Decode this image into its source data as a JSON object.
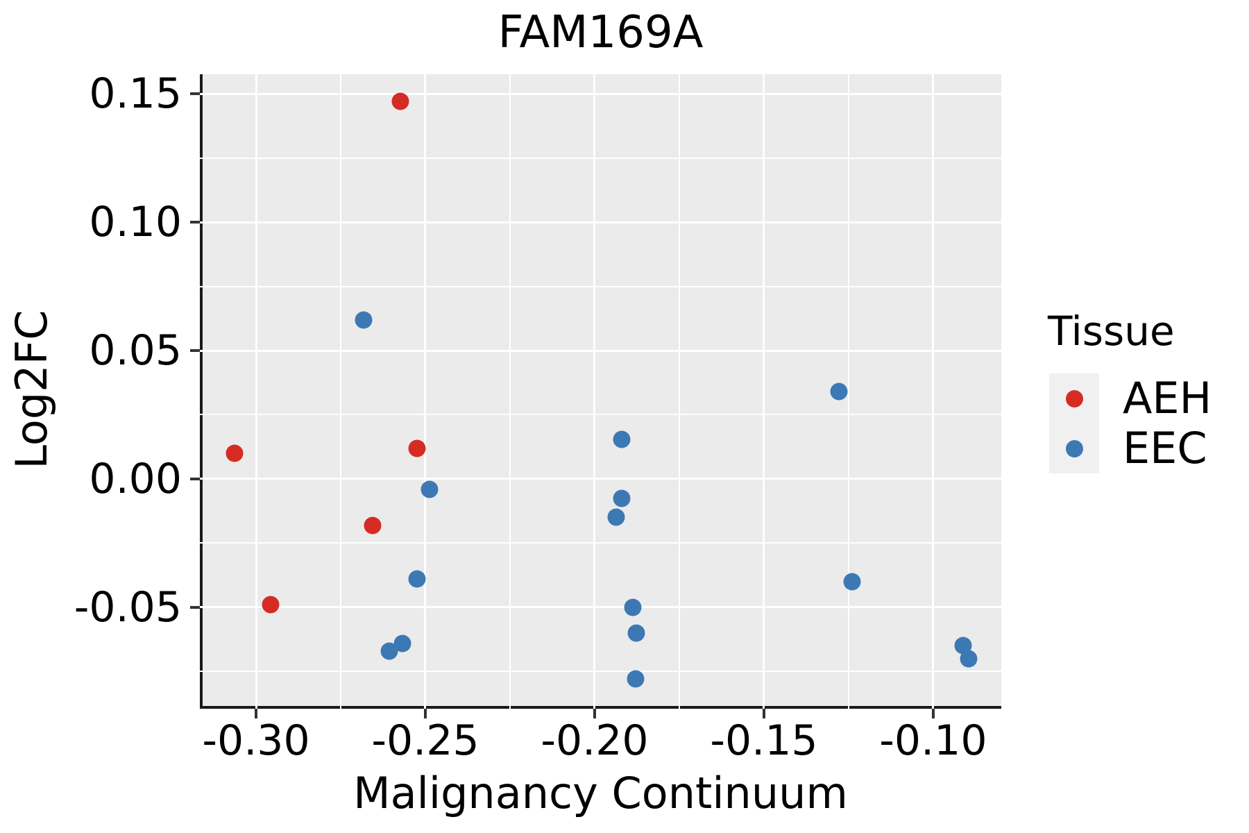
{
  "chart_data": {
    "type": "scatter",
    "title": "FAM169A",
    "xlabel": "Malignancy Continuum",
    "ylabel": "Log2FC",
    "legend_title": "Tissue",
    "legend_position": "right",
    "grid": "on",
    "colors": {
      "panel_background": "#ebebeb",
      "gridline": "#ffffff",
      "figure_background": "#ffffff",
      "legend_key_background": "#f0f0f0",
      "aeh": "#d62b23",
      "eec": "#3c79b4"
    },
    "xlim": [
      -0.3166,
      -0.0799
    ],
    "ylim": [
      -0.0895,
      0.1576
    ],
    "x_ticks": [
      {
        "value": -0.3,
        "label": "-0.30"
      },
      {
        "value": -0.25,
        "label": "-0.25"
      },
      {
        "value": -0.2,
        "label": "-0.20"
      },
      {
        "value": -0.15,
        "label": "-0.15"
      },
      {
        "value": -0.1,
        "label": "-0.10"
      }
    ],
    "y_ticks": [
      {
        "value": 0.15,
        "label": "0.15"
      },
      {
        "value": 0.1,
        "label": "0.10"
      },
      {
        "value": 0.05,
        "label": "0.05"
      },
      {
        "value": 0.0,
        "label": "0.00"
      },
      {
        "value": -0.05,
        "label": "-0.05"
      }
    ],
    "x_minor_gridlines": [
      -0.275,
      -0.225,
      -0.175,
      -0.125
    ],
    "y_minor_gridlines": [
      0.125,
      0.075,
      0.025,
      -0.025,
      -0.075
    ],
    "series": [
      {
        "name": "AEH",
        "color": "#d62b23",
        "points": [
          [
            -0.3064,
            0.01
          ],
          [
            -0.2956,
            -0.049
          ],
          [
            -0.2655,
            -0.018
          ],
          [
            -0.2574,
            0.147
          ],
          [
            -0.2525,
            0.012
          ]
        ]
      },
      {
        "name": "EEC",
        "color": "#3c79b4",
        "points": [
          [
            -0.2683,
            0.062
          ],
          [
            -0.2606,
            -0.067
          ],
          [
            -0.2568,
            -0.064
          ],
          [
            -0.2525,
            -0.039
          ],
          [
            -0.2487,
            -0.004
          ],
          [
            -0.1937,
            -0.015
          ],
          [
            -0.1921,
            0.0155
          ],
          [
            -0.1921,
            -0.0075
          ],
          [
            -0.1887,
            -0.05
          ],
          [
            -0.1876,
            -0.06
          ],
          [
            -0.188,
            -0.078
          ],
          [
            -0.1278,
            0.034
          ],
          [
            -0.1239,
            -0.04
          ],
          [
            -0.0911,
            -0.065
          ],
          [
            -0.0896,
            -0.07
          ]
        ]
      }
    ]
  }
}
